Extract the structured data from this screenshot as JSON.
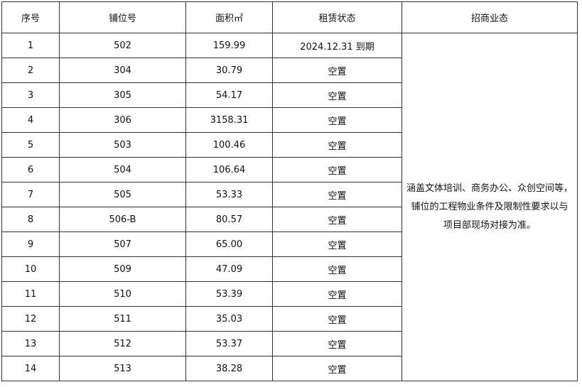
{
  "table": {
    "header": [
      "序号",
      "铺位号",
      "面积㎡",
      "租赁状态",
      "招商业态"
    ],
    "rows": [
      [
        "1",
        "502",
        "159.99",
        "2024.12.31 到期"
      ],
      [
        "2",
        "304",
        "30.79",
        "空置"
      ],
      [
        "3",
        "305",
        "54.17",
        "空置"
      ],
      [
        "4",
        "306",
        "3158.31",
        "空置"
      ],
      [
        "5",
        "503",
        "100.46",
        "空置"
      ],
      [
        "6",
        "504",
        "106.64",
        "空置"
      ],
      [
        "7",
        "505",
        "53.33",
        "空置"
      ],
      [
        "8",
        "506-B",
        "80.57",
        "空置"
      ],
      [
        "9",
        "507",
        "65.00",
        "空置"
      ],
      [
        "10",
        "509",
        "47.09",
        "空置"
      ],
      [
        "11",
        "510",
        "53.39",
        "空置"
      ],
      [
        "12",
        "511",
        "35.03",
        "空置"
      ],
      [
        "13",
        "512",
        "53.37",
        "空置"
      ],
      [
        "14",
        "513",
        "38.28",
        "空置"
      ]
    ],
    "business_note": [
      "涵盖文体培训、商务办公、众创空间等，",
      "铺位的工程物业条件及限制性要求以与",
      "项目部现场对接为准。"
    ]
  }
}
